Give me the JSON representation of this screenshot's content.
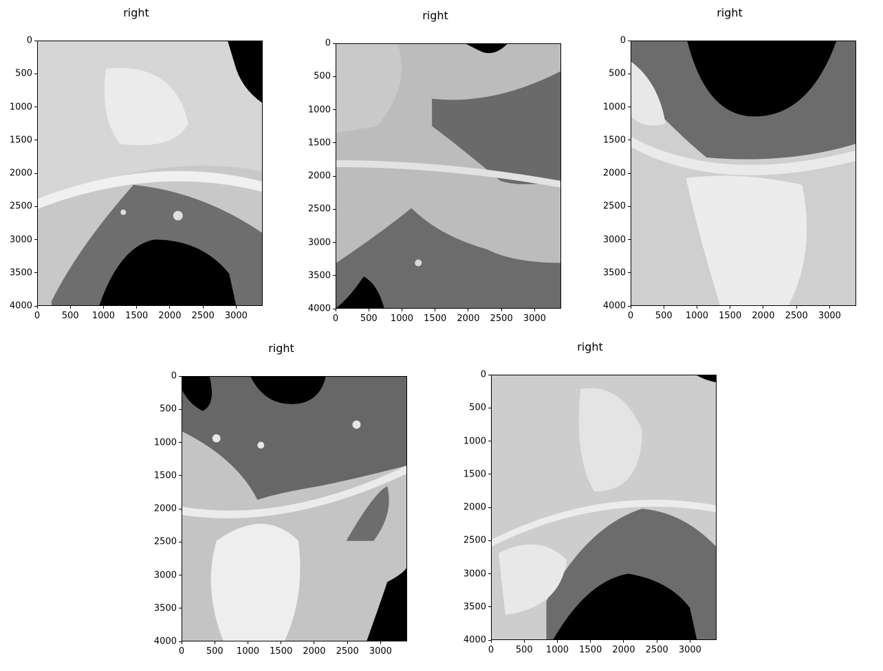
{
  "panels": [
    {
      "title": "right"
    },
    {
      "title": "right"
    },
    {
      "title": "right"
    },
    {
      "title": "right"
    },
    {
      "title": "right"
    }
  ],
  "axes": {
    "x_ticks": [
      "0",
      "500",
      "1000",
      "1500",
      "2000",
      "2500",
      "3000"
    ],
    "y_ticks": [
      "0",
      "500",
      "1000",
      "1500",
      "2000",
      "2500",
      "3000",
      "3500",
      "4000"
    ]
  }
}
